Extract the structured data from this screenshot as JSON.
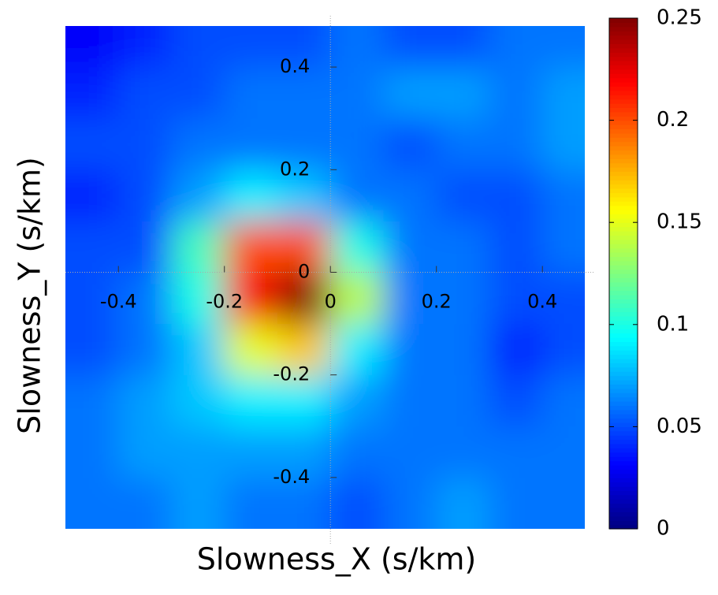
{
  "chart_data": {
    "type": "heatmap",
    "xlabel": "Slowness_X (s/km)",
    "ylabel": "Slowness_Y (s/km)",
    "xedges": [
      -0.5,
      -0.4,
      -0.3,
      -0.2,
      -0.1,
      0,
      0.1,
      0.2,
      0.3,
      0.4,
      0.48
    ],
    "yedges": [
      -0.5,
      -0.4,
      -0.3,
      -0.2,
      -0.1,
      0,
      0.1,
      0.2,
      0.3,
      0.4,
      0.48
    ],
    "values": [
      [
        0.06,
        0.06,
        0.07,
        0.06,
        0.06,
        0.05,
        0.06,
        0.07,
        0.06,
        0.06
      ],
      [
        0.06,
        0.07,
        0.07,
        0.07,
        0.07,
        0.06,
        0.06,
        0.06,
        0.06,
        0.06
      ],
      [
        0.06,
        0.07,
        0.08,
        0.09,
        0.09,
        0.07,
        0.06,
        0.06,
        0.05,
        0.06
      ],
      [
        0.05,
        0.06,
        0.08,
        0.15,
        0.17,
        0.09,
        0.06,
        0.06,
        0.04,
        0.05
      ],
      [
        0.05,
        0.06,
        0.1,
        0.22,
        0.25,
        0.14,
        0.06,
        0.06,
        0.05,
        0.05
      ],
      [
        0.05,
        0.05,
        0.11,
        0.2,
        0.2,
        0.1,
        0.06,
        0.06,
        0.05,
        0.06
      ],
      [
        0.04,
        0.05,
        0.07,
        0.09,
        0.08,
        0.06,
        0.06,
        0.05,
        0.05,
        0.06
      ],
      [
        0.05,
        0.05,
        0.06,
        0.06,
        0.06,
        0.06,
        0.05,
        0.06,
        0.06,
        0.07
      ],
      [
        0.04,
        0.05,
        0.05,
        0.06,
        0.06,
        0.06,
        0.07,
        0.07,
        0.06,
        0.07
      ],
      [
        0.03,
        0.04,
        0.05,
        0.05,
        0.05,
        0.06,
        0.05,
        0.05,
        0.06,
        0.06
      ]
    ],
    "xlim": [
      -0.5,
      0.48
    ],
    "ylim": [
      -0.5,
      0.48
    ],
    "xticks": [
      -0.4,
      -0.2,
      0,
      0.2,
      0.4
    ],
    "yticks": [
      0.4,
      0.2,
      0,
      -0.2,
      -0.4
    ],
    "colormap": "jet",
    "clim": [
      0,
      0.25
    ],
    "cticks": [
      0,
      0.05,
      0.1,
      0.15,
      0.2,
      0.25
    ]
  }
}
